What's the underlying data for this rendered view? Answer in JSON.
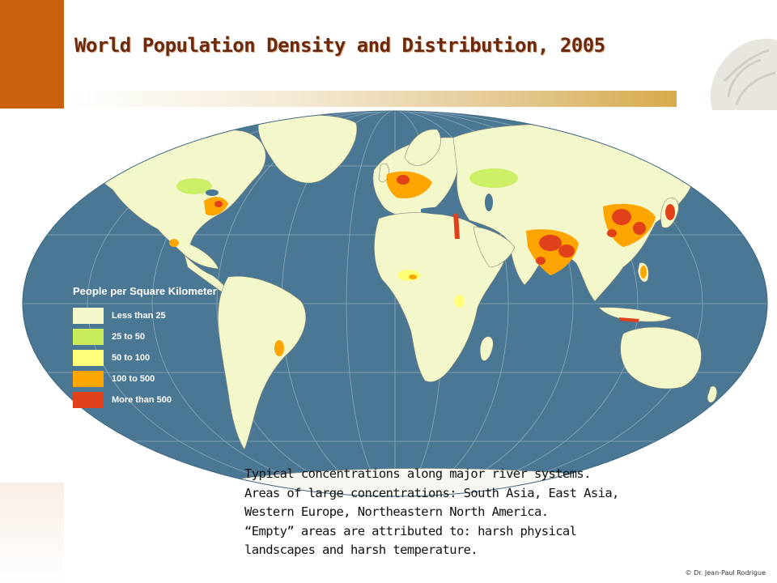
{
  "slide": {
    "title": "World Population Density and Distribution, 2005",
    "caption_lines": [
      "Typical concentrations along major river systems.",
      "Areas of large concentrations: South Asia, East Asia,",
      "Western Europe, Northeastern North America.",
      "“Empty” areas are attributed to: harsh physical",
      "landscapes and harsh temperature."
    ],
    "credit": "© Dr. Jean-Paul Rodrigue"
  },
  "legend": {
    "title": "People per Square Kilometer",
    "items": [
      {
        "label": "Less than 25",
        "color": "#f3f7c9"
      },
      {
        "label": "25 to 50",
        "color": "#c9ec5c"
      },
      {
        "label": "50 to 100",
        "color": "#ffff78"
      },
      {
        "label": "100 to 500",
        "color": "#ffa500"
      },
      {
        "label": "More than 500",
        "color": "#e0401a"
      }
    ]
  },
  "map": {
    "projection": "Robinson",
    "ocean_color": "#4a7894",
    "land_color": "#f3f7c9"
  },
  "theme": {
    "accent": "#c8600e",
    "title_color": "#6b2a0e"
  }
}
